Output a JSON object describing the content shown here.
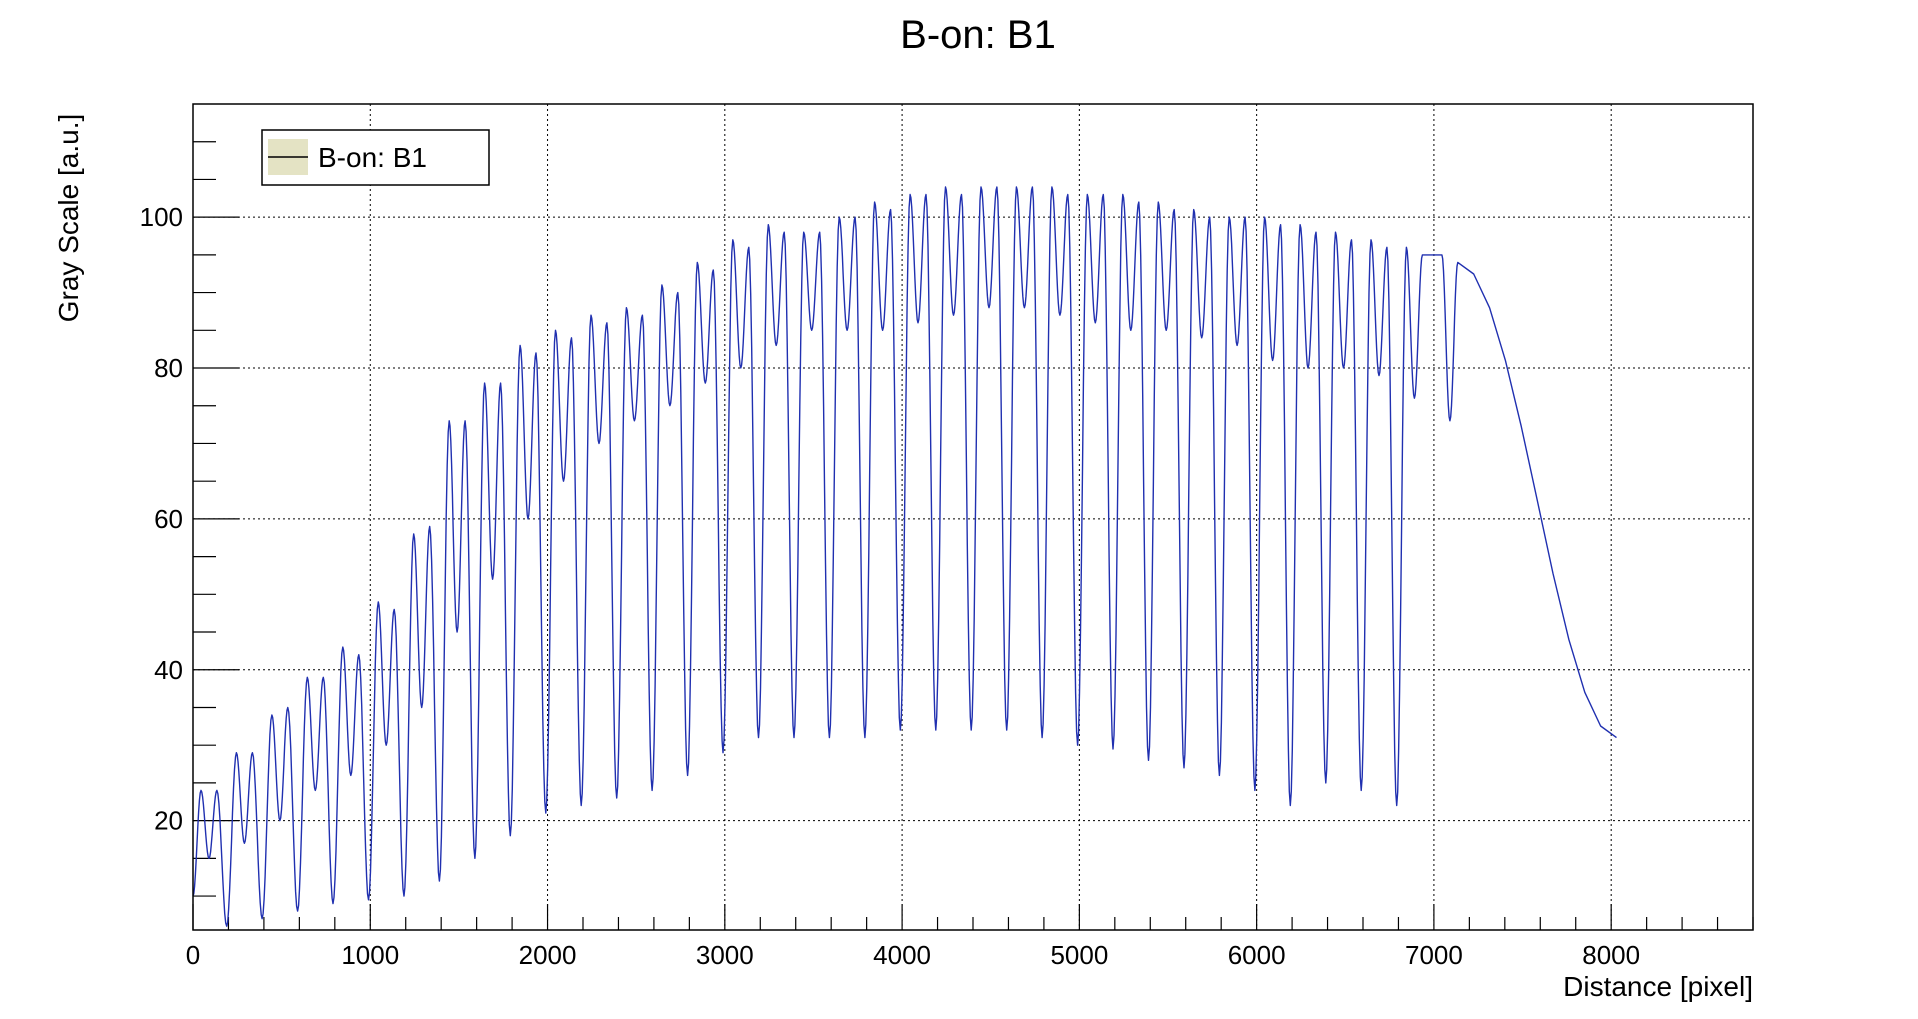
{
  "chart_data": {
    "type": "line",
    "title": "B-on: B1",
    "xlabel": "Distance [pixel]",
    "ylabel": "Gray Scale [a.u.]",
    "xlim": [
      0,
      8800
    ],
    "ylim": [
      5.5,
      115
    ],
    "x_ticks": [
      0,
      1000,
      2000,
      3000,
      4000,
      5000,
      6000,
      7000,
      8000
    ],
    "y_ticks": [
      20,
      40,
      60,
      80,
      100
    ],
    "grid": true,
    "legend_position": "top-left",
    "colors": {
      "line": "#2030b0",
      "legend_fill": "#e4e3c4",
      "grid": "#000000"
    },
    "series": [
      {
        "name": "B-on: B1",
        "x_range": [
          0,
          8030
        ],
        "period": 200,
        "first_peak_pair_center": 90,
        "pair_peaks": [
          [
            24,
            24
          ],
          [
            29,
            29
          ],
          [
            34,
            35
          ],
          [
            39,
            39
          ],
          [
            43,
            42
          ],
          [
            49,
            48
          ],
          [
            58,
            59
          ],
          [
            73,
            73
          ],
          [
            78,
            78
          ],
          [
            83,
            82
          ],
          [
            85,
            84
          ],
          [
            87,
            86
          ],
          [
            88,
            87
          ],
          [
            91,
            90
          ],
          [
            94,
            93
          ],
          [
            97,
            96
          ],
          [
            99,
            98
          ],
          [
            98,
            98
          ],
          [
            100,
            100
          ],
          [
            102,
            101
          ],
          [
            103,
            103
          ],
          [
            104,
            103
          ],
          [
            104,
            104
          ],
          [
            104,
            104
          ],
          [
            104,
            103
          ],
          [
            103,
            103
          ],
          [
            103,
            102
          ],
          [
            102,
            101
          ],
          [
            101,
            100
          ],
          [
            100,
            100
          ],
          [
            100,
            99
          ],
          [
            99,
            98
          ],
          [
            98,
            97
          ],
          [
            97,
            96
          ],
          [
            96,
            95
          ],
          [
            95,
            94
          ]
        ],
        "pair_dips": [
          15,
          17,
          20,
          24,
          26,
          30,
          35,
          45,
          52,
          60,
          65,
          70,
          73,
          75,
          78,
          80,
          83,
          85,
          85,
          85,
          86,
          87,
          88,
          88,
          87,
          86,
          85,
          85,
          84,
          83,
          81,
          80,
          80,
          79,
          76,
          73
        ],
        "valleys": [
          6,
          7,
          8,
          9,
          9.5,
          10,
          12,
          15,
          18,
          21,
          22,
          23,
          24,
          26,
          29,
          31,
          31,
          31,
          31,
          32,
          32,
          32,
          32,
          31,
          30,
          29.5,
          28,
          27,
          26,
          24,
          22,
          25,
          24,
          22
        ],
        "start_value": 10,
        "end_value": 31
      }
    ]
  }
}
